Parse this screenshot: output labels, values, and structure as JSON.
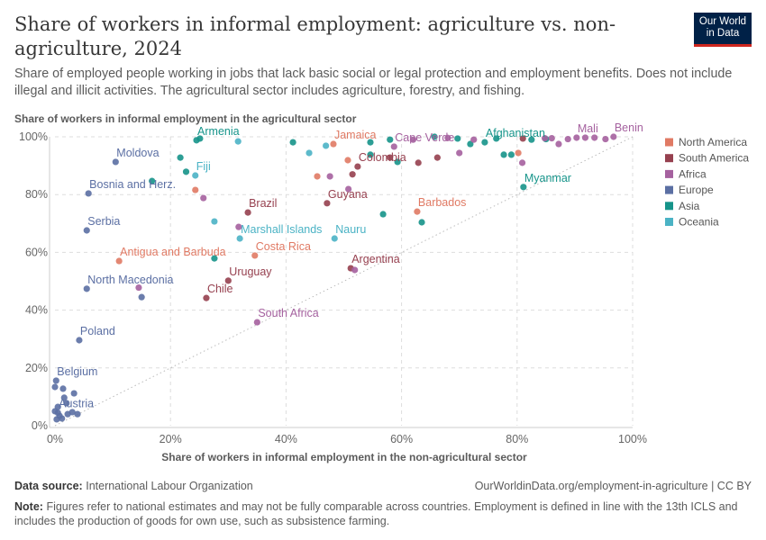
{
  "title": "Share of workers in informal employment: agriculture vs. non-agriculture, 2024",
  "subtitle": "Share of employed people working in jobs that lack basic social or legal protection and employment benefits. Does not include illegal and illicit activities. The agricultural sector includes agriculture, forestry, and fishing.",
  "logo": {
    "line1": "Our World",
    "line2": "in Data"
  },
  "footer": {
    "source_label": "Data source:",
    "source": "International Labour Organization",
    "url": "OurWorldinData.org/employment-in-agriculture | CC BY",
    "note_label": "Note:",
    "note": "Figures refer to national estimates and may not be fully comparable across countries. Employment is defined in line with the 13th ICLS and includes the production of goods for own use, such as subsistence farming."
  },
  "chart_data": {
    "type": "scatter",
    "xlabel": "Share of workers in informal employment in the non-agricultural sector",
    "ylabel": "Share of workers in informal employment in the agricultural sector",
    "xlim": [
      0,
      100
    ],
    "ylim": [
      0,
      100
    ],
    "xticks": [
      "0%",
      "20%",
      "40%",
      "60%",
      "80%",
      "100%"
    ],
    "yticks": [
      "0%",
      "20%",
      "40%",
      "60%",
      "80%",
      "100%"
    ],
    "grid": true,
    "reference_line": "y = x (dotted)",
    "legend_position": "right",
    "groups": [
      {
        "name": "North America",
        "color": "#e07a64"
      },
      {
        "name": "South America",
        "color": "#96404f"
      },
      {
        "name": "Africa",
        "color": "#a5619f"
      },
      {
        "name": "Europe",
        "color": "#5b6fa3"
      },
      {
        "name": "Asia",
        "color": "#16948a"
      },
      {
        "name": "Oceania",
        "color": "#4bb3c5"
      }
    ],
    "points": [
      {
        "label": "Moldova",
        "g": 3,
        "x": 10.5,
        "y": 91.3
      },
      {
        "label": "Bosnia and Herz.",
        "g": 3,
        "x": 5.8,
        "y": 80.4
      },
      {
        "label": "Serbia",
        "g": 3,
        "x": 5.5,
        "y": 67.6
      },
      {
        "label": "North Macedonia",
        "g": 3,
        "x": 5.5,
        "y": 47.4
      },
      {
        "label": "Poland",
        "g": 3,
        "x": 4.2,
        "y": 29.6
      },
      {
        "label": "Belgium",
        "g": 3,
        "x": 0.2,
        "y": 15.6
      },
      {
        "label": "Austria",
        "g": 3,
        "x": 0.5,
        "y": 4.5
      },
      {
        "label": "Antigua and Barbuda",
        "g": 0,
        "x": 11.1,
        "y": 57
      },
      {
        "label": "Armenia",
        "g": 4,
        "x": 24.5,
        "y": 98.8
      },
      {
        "label": "Fiji",
        "g": 5,
        "x": 24.3,
        "y": 86.6
      },
      {
        "label": "Brazil",
        "g": 1,
        "x": 33.4,
        "y": 73.8
      },
      {
        "label": "Marshall Islands",
        "g": 5,
        "x": 32,
        "y": 64.8
      },
      {
        "label": "Costa Rica",
        "g": 0,
        "x": 34.6,
        "y": 58.9
      },
      {
        "label": "Uruguay",
        "g": 1,
        "x": 30,
        "y": 50.2
      },
      {
        "label": "Chile",
        "g": 1,
        "x": 26.2,
        "y": 44.2
      },
      {
        "label": "South Africa",
        "g": 2,
        "x": 35,
        "y": 35.8
      },
      {
        "label": "Jamaica",
        "g": 0,
        "x": 48.2,
        "y": 97.5
      },
      {
        "label": "Cape Verde",
        "g": 2,
        "x": 58.7,
        "y": 96.6
      },
      {
        "label": "Colombia",
        "g": 1,
        "x": 52.4,
        "y": 89.7
      },
      {
        "label": "Guyana",
        "g": 1,
        "x": 47.1,
        "y": 77
      },
      {
        "label": "Barbados",
        "g": 0,
        "x": 62.7,
        "y": 74.1
      },
      {
        "label": "Nauru",
        "g": 5,
        "x": 48.4,
        "y": 64.8
      },
      {
        "label": "Argentina",
        "g": 1,
        "x": 51.2,
        "y": 54.5
      },
      {
        "label": "Myanmar",
        "g": 4,
        "x": 81.1,
        "y": 82.6
      },
      {
        "label": "Afghanistan",
        "g": 4,
        "x": 74.4,
        "y": 98.1
      },
      {
        "label": "Mali",
        "g": 2,
        "x": 90.3,
        "y": 99.7
      },
      {
        "label": "Benin",
        "g": 2,
        "x": 96.7,
        "y": 100
      },
      {
        "g": 4,
        "x": 21.7,
        "y": 92.8
      },
      {
        "g": 4,
        "x": 22.7,
        "y": 87.9
      },
      {
        "g": 4,
        "x": 25.1,
        "y": 99.4
      },
      {
        "g": 4,
        "x": 41.2,
        "y": 98.1
      },
      {
        "g": 4,
        "x": 54.6,
        "y": 98.1
      },
      {
        "g": 4,
        "x": 59.3,
        "y": 91.3
      },
      {
        "g": 4,
        "x": 54.6,
        "y": 93.8
      },
      {
        "g": 4,
        "x": 56.8,
        "y": 73.2
      },
      {
        "g": 4,
        "x": 63.5,
        "y": 70.4
      },
      {
        "g": 4,
        "x": 69.7,
        "y": 99.4
      },
      {
        "g": 4,
        "x": 71.9,
        "y": 97.5
      },
      {
        "g": 4,
        "x": 77.7,
        "y": 93.8
      },
      {
        "g": 4,
        "x": 79,
        "y": 93.8
      },
      {
        "g": 4,
        "x": 58,
        "y": 99
      },
      {
        "g": 4,
        "x": 65.7,
        "y": 100
      },
      {
        "g": 4,
        "x": 27.6,
        "y": 57.9
      },
      {
        "g": 4,
        "x": 16.8,
        "y": 84.7
      },
      {
        "g": 4,
        "x": 76.4,
        "y": 99.4
      },
      {
        "g": 4,
        "x": 82.5,
        "y": 99
      },
      {
        "g": 4,
        "x": 85,
        "y": 99.2
      },
      {
        "g": 5,
        "x": 44,
        "y": 94.4
      },
      {
        "g": 5,
        "x": 46.9,
        "y": 96.9
      },
      {
        "g": 5,
        "x": 27.6,
        "y": 70.7
      },
      {
        "g": 5,
        "x": 31.7,
        "y": 98.4
      },
      {
        "g": 0,
        "x": 24.3,
        "y": 81.6
      },
      {
        "g": 0,
        "x": 50.7,
        "y": 91.9
      },
      {
        "g": 0,
        "x": 45.4,
        "y": 86.3
      },
      {
        "g": 0,
        "x": 80.2,
        "y": 94.4
      },
      {
        "g": 1,
        "x": 58,
        "y": 92.8
      },
      {
        "g": 1,
        "x": 62.9,
        "y": 91
      },
      {
        "g": 1,
        "x": 66.2,
        "y": 92.8
      },
      {
        "g": 1,
        "x": 81,
        "y": 99.4
      },
      {
        "g": 1,
        "x": 51.5,
        "y": 87
      },
      {
        "g": 2,
        "x": 25.7,
        "y": 78.8
      },
      {
        "g": 2,
        "x": 31.8,
        "y": 68.8
      },
      {
        "g": 2,
        "x": 47.6,
        "y": 86.3
      },
      {
        "g": 2,
        "x": 50.8,
        "y": 81.9
      },
      {
        "g": 2,
        "x": 51.9,
        "y": 53.9
      },
      {
        "g": 2,
        "x": 70,
        "y": 94.4
      },
      {
        "g": 2,
        "x": 72.5,
        "y": 99
      },
      {
        "g": 2,
        "x": 80.9,
        "y": 91
      },
      {
        "g": 2,
        "x": 87.2,
        "y": 97.5
      },
      {
        "g": 2,
        "x": 84.8,
        "y": 99.5
      },
      {
        "g": 2,
        "x": 86,
        "y": 99.5
      },
      {
        "g": 2,
        "x": 88.8,
        "y": 99.2
      },
      {
        "g": 2,
        "x": 91.8,
        "y": 99.7
      },
      {
        "g": 2,
        "x": 93.4,
        "y": 99.7
      },
      {
        "g": 2,
        "x": 95.3,
        "y": 99.2
      },
      {
        "g": 2,
        "x": 62,
        "y": 99
      },
      {
        "g": 2,
        "x": 68,
        "y": 99.6
      },
      {
        "g": 2,
        "x": 14.5,
        "y": 47.8
      },
      {
        "g": 3,
        "x": 15,
        "y": 44.5
      },
      {
        "g": 3,
        "x": 0,
        "y": 13.4
      },
      {
        "g": 3,
        "x": 1.4,
        "y": 12.8
      },
      {
        "g": 3,
        "x": 1.6,
        "y": 9.7
      },
      {
        "g": 3,
        "x": 3.3,
        "y": 11.2
      },
      {
        "g": 3,
        "x": 0.5,
        "y": 6.5
      },
      {
        "g": 3,
        "x": 2,
        "y": 7.8
      },
      {
        "g": 3,
        "x": 3,
        "y": 4.7
      },
      {
        "g": 3,
        "x": 3.9,
        "y": 4
      },
      {
        "g": 3,
        "x": 0.8,
        "y": 3.4
      },
      {
        "g": 3,
        "x": 0.3,
        "y": 2.2
      },
      {
        "g": 3,
        "x": 2.2,
        "y": 4
      },
      {
        "g": 3,
        "x": 0,
        "y": 5
      },
      {
        "g": 3,
        "x": 1.2,
        "y": 2.5
      }
    ]
  }
}
